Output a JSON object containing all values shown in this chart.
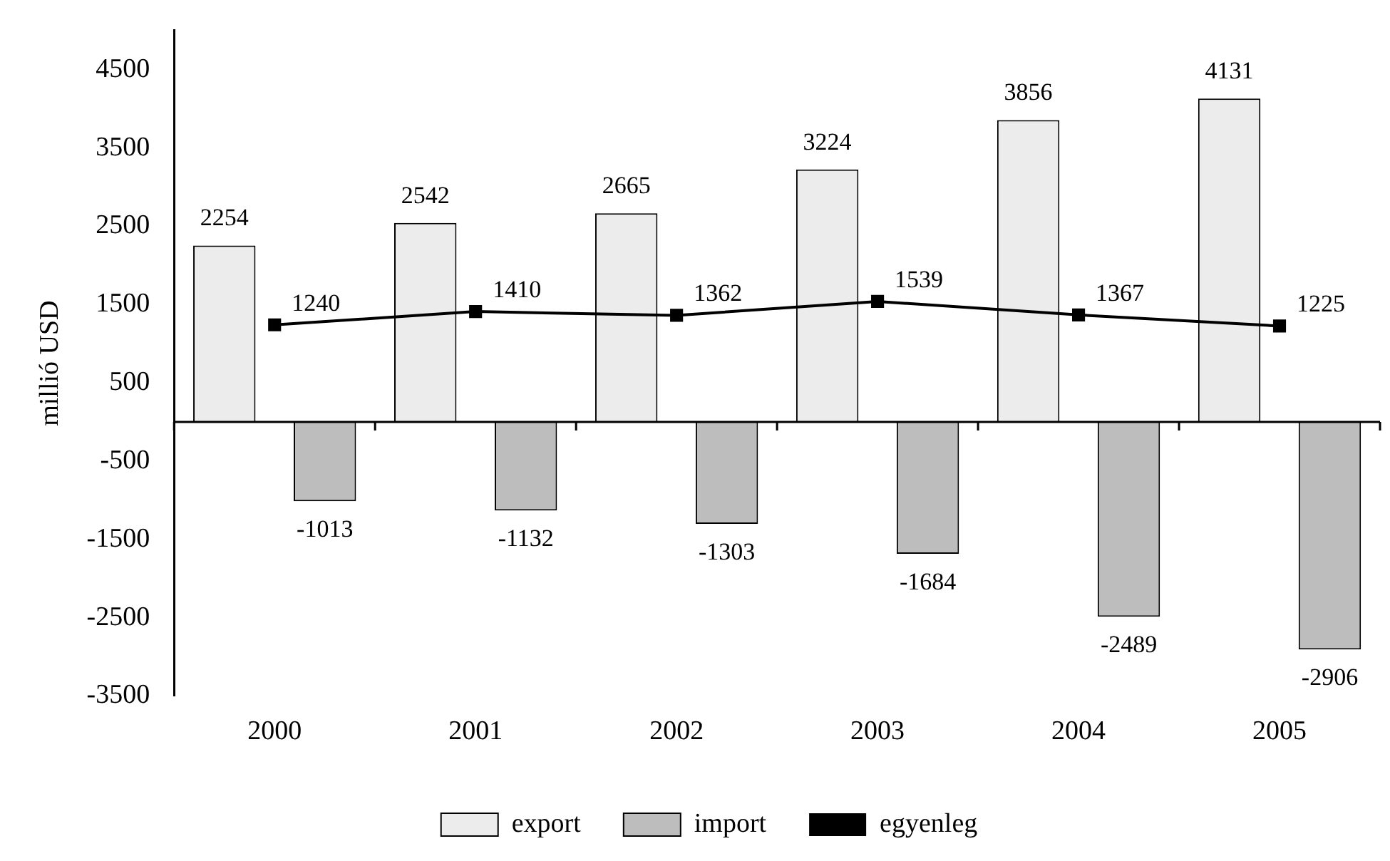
{
  "chart_data": {
    "type": "bar",
    "ylabel": "millió USD",
    "categories": [
      "2000",
      "2001",
      "2002",
      "2003",
      "2004",
      "2005"
    ],
    "series": [
      {
        "name": "export",
        "color": "#ececec",
        "values": [
          2254,
          2542,
          2665,
          3224,
          3856,
          4131
        ]
      },
      {
        "name": "import",
        "color": "#bdbdbd",
        "values": [
          -1013,
          -1132,
          -1303,
          -1684,
          -2489,
          -2906
        ]
      },
      {
        "name": "egyenleg",
        "type": "line",
        "color": "#000000",
        "marker": "square",
        "values": [
          1240,
          1410,
          1362,
          1539,
          1367,
          1225
        ]
      }
    ],
    "ylim": [
      -3500,
      5000
    ],
    "yticks": [
      -3500,
      -2500,
      -1500,
      -500,
      500,
      1500,
      2500,
      3500,
      4500
    ],
    "grid": false,
    "legend": "bottom",
    "data_labels": true
  }
}
